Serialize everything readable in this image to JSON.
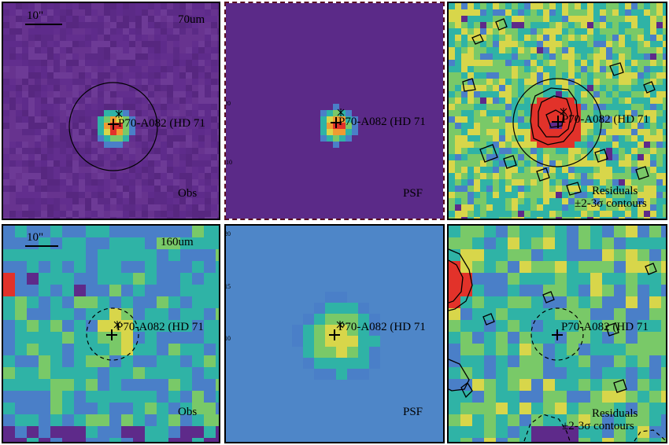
{
  "colors": {
    "deep_purple": "#5e2a8a",
    "blue": "#4a7fc8",
    "teal": "#2fb3a6",
    "green": "#79c968",
    "yellow": "#d8d64a",
    "orange": "#f09b32",
    "red": "#e2322a",
    "psf_background": "#4e86c8"
  },
  "panels": {
    "obs70": {
      "band": "70um",
      "scale": "10\"",
      "label": "Obs",
      "source": "P70-A082 (HD 71"
    },
    "psf70": {
      "label": "PSF",
      "source": "P70-A082 (HD 71",
      "ticks": [
        "20",
        "10"
      ]
    },
    "res70": {
      "label": "Residuals",
      "contours": "±2-3σ contours",
      "source": "P70-A082 (HD 71"
    },
    "obs160": {
      "band": "160um",
      "scale": "10\"",
      "label": "Obs",
      "source": "P70-A082 (HD 71"
    },
    "psf160": {
      "label": "PSF",
      "source": "P70-A082 (HD 71",
      "ticks": [
        "20",
        "15",
        "10"
      ]
    },
    "res160": {
      "label": "Residuals",
      "contours": "±2-3σ contours",
      "source": "P70-A082 (HD 71"
    }
  }
}
